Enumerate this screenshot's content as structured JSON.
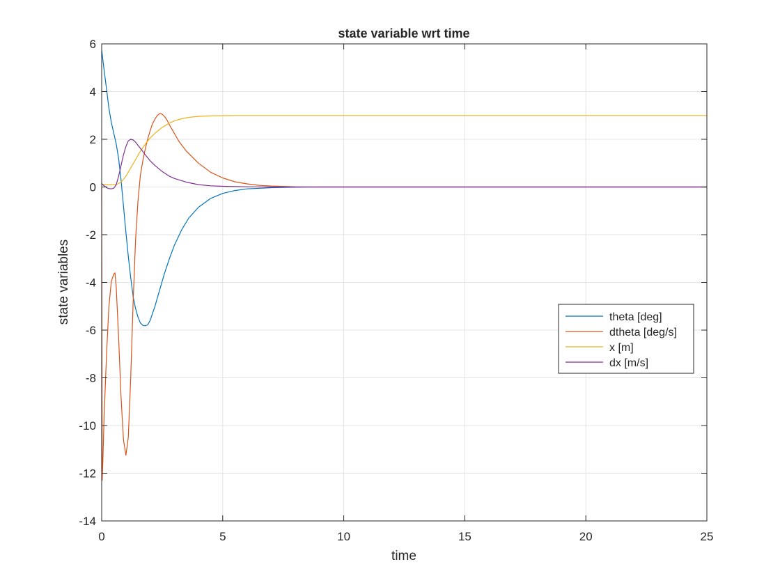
{
  "chart_data": {
    "type": "line",
    "title": "state variable wrt time",
    "xlabel": "time",
    "ylabel": "state variables",
    "xlim": [
      0,
      25
    ],
    "ylim": [
      -14,
      6
    ],
    "xticks": [
      0,
      5,
      10,
      15,
      20,
      25
    ],
    "yticks": [
      -14,
      -12,
      -10,
      -8,
      -6,
      -4,
      -2,
      0,
      2,
      4,
      6
    ],
    "xtick_labels": [
      "0",
      "5",
      "10",
      "15",
      "20",
      "25"
    ],
    "ytick_labels": [
      "-14",
      "-12",
      "-10",
      "-8",
      "-6",
      "-4",
      "-2",
      "0",
      "2",
      "4",
      "6"
    ],
    "grid": true,
    "legend_position": "right",
    "series": [
      {
        "name": "theta [deg]",
        "color": "#0072BD",
        "x": [
          0,
          0.1,
          0.2,
          0.3,
          0.4,
          0.5,
          0.6,
          0.7,
          0.8,
          0.9,
          1.0,
          1.1,
          1.2,
          1.3,
          1.4,
          1.5,
          1.6,
          1.7,
          1.8,
          1.9,
          2.0,
          2.2,
          2.4,
          2.6,
          2.8,
          3.0,
          3.3,
          3.6,
          4.0,
          4.5,
          5.0,
          5.5,
          6.0,
          7.0,
          8.0,
          9.0,
          10.0,
          12.0,
          15.0,
          20.0,
          25.0
        ],
        "y": [
          5.75,
          4.9,
          4.1,
          3.3,
          2.7,
          2.25,
          1.8,
          1.2,
          0.3,
          -0.8,
          -1.9,
          -2.9,
          -3.8,
          -4.6,
          -5.1,
          -5.45,
          -5.7,
          -5.8,
          -5.82,
          -5.78,
          -5.6,
          -5.0,
          -4.3,
          -3.6,
          -3.0,
          -2.45,
          -1.8,
          -1.3,
          -0.85,
          -0.48,
          -0.27,
          -0.15,
          -0.08,
          -0.03,
          -0.01,
          0,
          0,
          0,
          0,
          0,
          0
        ]
      },
      {
        "name": "dtheta [deg/s]",
        "color": "#D95319",
        "x": [
          0,
          0.02,
          0.05,
          0.1,
          0.2,
          0.3,
          0.4,
          0.5,
          0.55,
          0.6,
          0.7,
          0.8,
          0.9,
          1.0,
          1.1,
          1.2,
          1.3,
          1.4,
          1.5,
          1.6,
          1.7,
          1.8,
          1.9,
          2.0,
          2.1,
          2.2,
          2.3,
          2.4,
          2.5,
          2.6,
          2.7,
          2.8,
          3.0,
          3.2,
          3.5,
          4.0,
          4.5,
          5.0,
          5.5,
          6.0,
          6.5,
          7.0,
          8.0,
          9.0,
          10.0,
          12.0,
          15.0,
          20.0,
          25.0
        ],
        "y": [
          0,
          -12.3,
          -11.5,
          -9.6,
          -7.0,
          -5.0,
          -3.95,
          -3.65,
          -3.6,
          -4.2,
          -6.3,
          -8.8,
          -10.6,
          -11.25,
          -10.5,
          -8.0,
          -4.8,
          -2.2,
          -0.6,
          0.5,
          1.1,
          1.6,
          2.0,
          2.35,
          2.65,
          2.85,
          3.0,
          3.08,
          3.05,
          2.95,
          2.8,
          2.6,
          2.25,
          1.9,
          1.5,
          1.0,
          0.62,
          0.38,
          0.22,
          0.13,
          0.07,
          0.04,
          0.01,
          0,
          0,
          0,
          0,
          0,
          0
        ]
      },
      {
        "name": "x [m]",
        "color": "#EDB120",
        "x": [
          0,
          0.2,
          0.4,
          0.6,
          0.8,
          1.0,
          1.2,
          1.4,
          1.6,
          1.8,
          2.0,
          2.2,
          2.5,
          2.8,
          3.0,
          3.3,
          3.6,
          4.0,
          4.5,
          5.0,
          5.5,
          6.0,
          7.0,
          8.0,
          10.0,
          15.0,
          20.0,
          25.0
        ],
        "y": [
          0.1,
          0.1,
          0.1,
          0.1,
          0.2,
          0.45,
          0.8,
          1.15,
          1.5,
          1.8,
          2.05,
          2.25,
          2.5,
          2.68,
          2.77,
          2.86,
          2.92,
          2.96,
          2.98,
          2.99,
          3.0,
          3.0,
          3.0,
          3.0,
          3.0,
          3.0,
          3.0,
          3.0
        ]
      },
      {
        "name": "dx [m/s]",
        "color": "#7E2F8E",
        "x": [
          0,
          0.1,
          0.2,
          0.3,
          0.4,
          0.5,
          0.6,
          0.7,
          0.8,
          0.9,
          1.0,
          1.1,
          1.2,
          1.3,
          1.4,
          1.5,
          1.6,
          1.8,
          2.0,
          2.2,
          2.5,
          2.8,
          3.0,
          3.5,
          4.0,
          4.5,
          5.0,
          6.0,
          7.0,
          8.0,
          10.0,
          15.0,
          20.0,
          25.0
        ],
        "y": [
          0.15,
          0.05,
          -0.03,
          -0.07,
          -0.08,
          -0.05,
          0.1,
          0.45,
          0.9,
          1.35,
          1.7,
          1.93,
          2.0,
          1.97,
          1.88,
          1.75,
          1.62,
          1.35,
          1.1,
          0.9,
          0.65,
          0.45,
          0.36,
          0.2,
          0.1,
          0.05,
          0.03,
          0.01,
          0,
          0,
          0,
          0,
          0,
          0
        ]
      }
    ]
  }
}
